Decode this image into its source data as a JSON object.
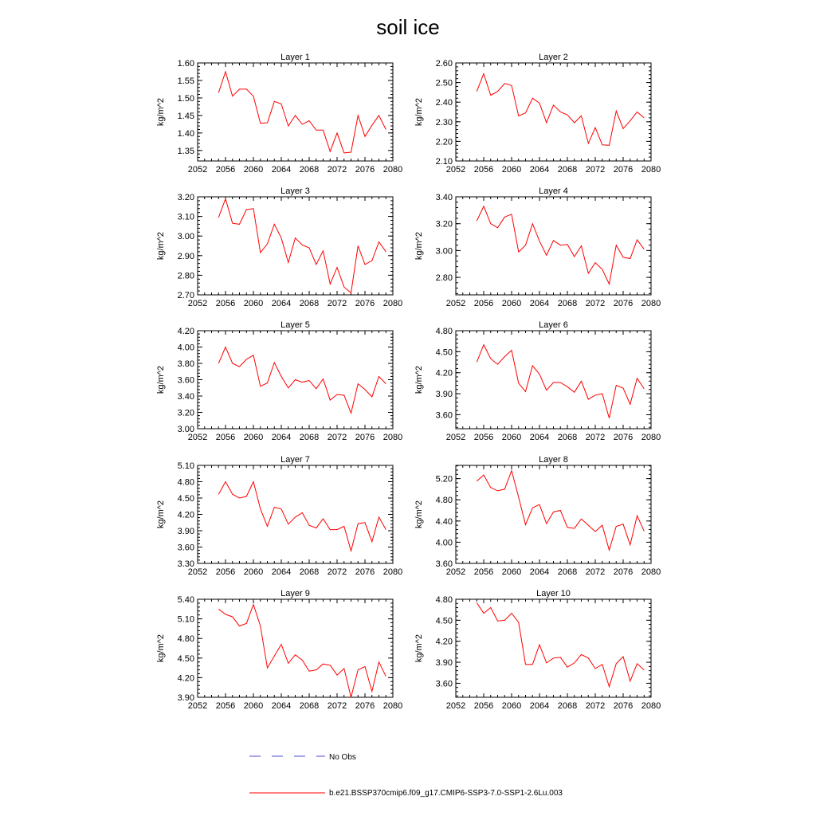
{
  "figure": {
    "title": "soil ice",
    "legend": {
      "obs_label": "No Obs",
      "obs_color": "#4a4ad0",
      "model_label": "b.e21.BSSP370cmip6.f09_g17.CMIP6-SSP3-7.0-SSP1-2.6Lu.003",
      "model_color": "#ff0000"
    }
  },
  "chart_data": [
    {
      "type": "line",
      "title": "Layer 1",
      "ylabel": "kg/m^2",
      "xlim": [
        2052,
        2080
      ],
      "xticks": [
        2052,
        2056,
        2060,
        2064,
        2068,
        2072,
        2076,
        2080
      ],
      "ylim": [
        1.32,
        1.6
      ],
      "yticks": [
        "1.35",
        "1.40",
        "1.45",
        "1.50",
        "1.55",
        "1.60"
      ],
      "x": [
        2055,
        2056,
        2057,
        2058,
        2059,
        2060,
        2061,
        2062,
        2063,
        2064,
        2065,
        2066,
        2067,
        2068,
        2069,
        2070,
        2071,
        2072,
        2073,
        2074,
        2075,
        2076,
        2077,
        2078,
        2079
      ],
      "series": [
        {
          "color": "#ff0000",
          "values": [
            1.515,
            1.575,
            1.505,
            1.525,
            1.525,
            1.505,
            1.428,
            1.429,
            1.49,
            1.483,
            1.42,
            1.45,
            1.425,
            1.435,
            1.408,
            1.408,
            1.347,
            1.4,
            1.343,
            1.345,
            1.45,
            1.39,
            1.422,
            1.45,
            1.41
          ]
        }
      ]
    },
    {
      "type": "line",
      "title": "Layer 2",
      "ylabel": "kg/m^2",
      "xlim": [
        2052,
        2080
      ],
      "xticks": [
        2052,
        2056,
        2060,
        2064,
        2068,
        2072,
        2076,
        2080
      ],
      "ylim": [
        2.1,
        2.6
      ],
      "yticks": [
        "2.10",
        "2.20",
        "2.30",
        "2.40",
        "2.50",
        "2.60"
      ],
      "x": [
        2055,
        2056,
        2057,
        2058,
        2059,
        2060,
        2061,
        2062,
        2063,
        2064,
        2065,
        2066,
        2067,
        2068,
        2069,
        2070,
        2071,
        2072,
        2073,
        2074,
        2075,
        2076,
        2077,
        2078,
        2079
      ],
      "series": [
        {
          "color": "#ff0000",
          "values": [
            2.455,
            2.545,
            2.435,
            2.455,
            2.495,
            2.485,
            2.33,
            2.345,
            2.42,
            2.395,
            2.295,
            2.385,
            2.35,
            2.335,
            2.295,
            2.33,
            2.19,
            2.27,
            2.182,
            2.18,
            2.355,
            2.265,
            2.305,
            2.35,
            2.32
          ]
        }
      ]
    },
    {
      "type": "line",
      "title": "Layer 3",
      "ylabel": "kg/m^2",
      "xlim": [
        2052,
        2080
      ],
      "xticks": [
        2052,
        2056,
        2060,
        2064,
        2068,
        2072,
        2076,
        2080
      ],
      "ylim": [
        2.7,
        3.2
      ],
      "yticks": [
        "2.70",
        "2.80",
        "2.90",
        "3.00",
        "3.10",
        "3.20"
      ],
      "x": [
        2055,
        2056,
        2057,
        2058,
        2059,
        2060,
        2061,
        2062,
        2063,
        2064,
        2065,
        2066,
        2067,
        2068,
        2069,
        2070,
        2071,
        2072,
        2073,
        2074,
        2075,
        2076,
        2077,
        2078,
        2079
      ],
      "series": [
        {
          "color": "#ff0000",
          "values": [
            3.095,
            3.19,
            3.065,
            3.06,
            3.135,
            3.14,
            2.915,
            2.96,
            3.06,
            2.99,
            2.865,
            2.99,
            2.955,
            2.94,
            2.855,
            2.925,
            2.755,
            2.84,
            2.74,
            2.71,
            2.95,
            2.855,
            2.875,
            2.97,
            2.92
          ]
        }
      ]
    },
    {
      "type": "line",
      "title": "Layer 4",
      "ylabel": "kg/m^2",
      "xlim": [
        2052,
        2080
      ],
      "xticks": [
        2052,
        2056,
        2060,
        2064,
        2068,
        2072,
        2076,
        2080
      ],
      "ylim": [
        2.67,
        3.4
      ],
      "yticks": [
        "2.80",
        "3.00",
        "3.20",
        "3.40"
      ],
      "x": [
        2055,
        2056,
        2057,
        2058,
        2059,
        2060,
        2061,
        2062,
        2063,
        2064,
        2065,
        2066,
        2067,
        2068,
        2069,
        2070,
        2071,
        2072,
        2073,
        2074,
        2075,
        2076,
        2077,
        2078,
        2079
      ],
      "series": [
        {
          "color": "#ff0000",
          "values": [
            3.22,
            3.33,
            3.2,
            3.17,
            3.25,
            3.27,
            2.99,
            3.04,
            3.2,
            3.07,
            2.965,
            3.075,
            3.04,
            3.045,
            2.955,
            3.035,
            2.83,
            2.91,
            2.86,
            2.75,
            3.04,
            2.95,
            2.94,
            3.08,
            3.01
          ]
        }
      ]
    },
    {
      "type": "line",
      "title": "Layer 5",
      "ylabel": "kg/m^2",
      "xlim": [
        2052,
        2080
      ],
      "xticks": [
        2052,
        2056,
        2060,
        2064,
        2068,
        2072,
        2076,
        2080
      ],
      "ylim": [
        3.0,
        4.2
      ],
      "yticks": [
        "3.00",
        "3.20",
        "3.40",
        "3.60",
        "3.80",
        "4.00",
        "4.20"
      ],
      "x": [
        2055,
        2056,
        2057,
        2058,
        2059,
        2060,
        2061,
        2062,
        2063,
        2064,
        2065,
        2066,
        2067,
        2068,
        2069,
        2070,
        2071,
        2072,
        2073,
        2074,
        2075,
        2076,
        2077,
        2078,
        2079
      ],
      "series": [
        {
          "color": "#ff0000",
          "values": [
            3.8,
            4.0,
            3.8,
            3.76,
            3.85,
            3.9,
            3.52,
            3.56,
            3.81,
            3.64,
            3.5,
            3.6,
            3.57,
            3.59,
            3.49,
            3.61,
            3.35,
            3.42,
            3.41,
            3.19,
            3.55,
            3.48,
            3.39,
            3.64,
            3.55
          ]
        }
      ]
    },
    {
      "type": "line",
      "title": "Layer 6",
      "ylabel": "kg/m^2",
      "xlim": [
        2052,
        2080
      ],
      "xticks": [
        2052,
        2056,
        2060,
        2064,
        2068,
        2072,
        2076,
        2080
      ],
      "ylim": [
        3.4,
        4.8
      ],
      "yticks": [
        "3.60",
        "3.90",
        "4.20",
        "4.50",
        "4.80"
      ],
      "x": [
        2055,
        2056,
        2057,
        2058,
        2059,
        2060,
        2061,
        2062,
        2063,
        2064,
        2065,
        2066,
        2067,
        2068,
        2069,
        2070,
        2071,
        2072,
        2073,
        2074,
        2075,
        2076,
        2077,
        2078,
        2079
      ],
      "series": [
        {
          "color": "#ff0000",
          "values": [
            4.35,
            4.6,
            4.4,
            4.32,
            4.43,
            4.52,
            4.05,
            3.93,
            4.3,
            4.18,
            3.95,
            4.06,
            4.06,
            4.0,
            3.92,
            4.08,
            3.82,
            3.88,
            3.9,
            3.55,
            4.02,
            3.98,
            3.75,
            4.12,
            3.97
          ]
        }
      ]
    },
    {
      "type": "line",
      "title": "Layer 7",
      "ylabel": "kg/m^2",
      "xlim": [
        2052,
        2080
      ],
      "xticks": [
        2052,
        2056,
        2060,
        2064,
        2068,
        2072,
        2076,
        2080
      ],
      "ylim": [
        3.3,
        5.1
      ],
      "yticks": [
        "3.30",
        "3.60",
        "3.90",
        "4.20",
        "4.50",
        "4.80",
        "5.10"
      ],
      "x": [
        2055,
        2056,
        2057,
        2058,
        2059,
        2060,
        2061,
        2062,
        2063,
        2064,
        2065,
        2066,
        2067,
        2068,
        2069,
        2070,
        2071,
        2072,
        2073,
        2074,
        2075,
        2076,
        2077,
        2078,
        2079
      ],
      "series": [
        {
          "color": "#ff0000",
          "values": [
            4.57,
            4.8,
            4.57,
            4.5,
            4.53,
            4.8,
            4.3,
            3.98,
            4.33,
            4.3,
            4.02,
            4.15,
            4.23,
            4.0,
            3.95,
            4.12,
            3.92,
            3.92,
            3.98,
            3.53,
            4.03,
            4.05,
            3.7,
            4.15,
            3.92
          ]
        }
      ]
    },
    {
      "type": "line",
      "title": "Layer 8",
      "ylabel": "kg/m^2",
      "xlim": [
        2052,
        2080
      ],
      "xticks": [
        2052,
        2056,
        2060,
        2064,
        2068,
        2072,
        2076,
        2080
      ],
      "ylim": [
        3.6,
        5.45
      ],
      "yticks": [
        "3.60",
        "4.00",
        "4.40",
        "4.80",
        "5.20"
      ],
      "x": [
        2055,
        2056,
        2057,
        2058,
        2059,
        2060,
        2061,
        2062,
        2063,
        2064,
        2065,
        2066,
        2067,
        2068,
        2069,
        2070,
        2071,
        2072,
        2073,
        2074,
        2075,
        2076,
        2077,
        2078,
        2079
      ],
      "series": [
        {
          "color": "#ff0000",
          "values": [
            5.15,
            5.27,
            5.03,
            4.97,
            5.0,
            5.35,
            4.85,
            4.33,
            4.65,
            4.71,
            4.35,
            4.57,
            4.6,
            4.28,
            4.26,
            4.44,
            4.32,
            4.2,
            4.32,
            3.85,
            4.3,
            4.34,
            3.95,
            4.5,
            4.21
          ]
        }
      ]
    },
    {
      "type": "line",
      "title": "Layer 9",
      "ylabel": "kg/m^2",
      "xlim": [
        2052,
        2080
      ],
      "xticks": [
        2052,
        2056,
        2060,
        2064,
        2068,
        2072,
        2076,
        2080
      ],
      "ylim": [
        3.9,
        5.4
      ],
      "yticks": [
        "3.90",
        "4.20",
        "4.50",
        "4.80",
        "5.10",
        "5.40"
      ],
      "x": [
        2055,
        2056,
        2057,
        2058,
        2059,
        2060,
        2061,
        2062,
        2063,
        2064,
        2065,
        2066,
        2067,
        2068,
        2069,
        2070,
        2071,
        2072,
        2073,
        2074,
        2075,
        2076,
        2077,
        2078,
        2079
      ],
      "series": [
        {
          "color": "#ff0000",
          "values": [
            5.25,
            5.17,
            5.13,
            4.99,
            5.03,
            5.32,
            4.99,
            4.35,
            4.53,
            4.71,
            4.42,
            4.55,
            4.47,
            4.3,
            4.32,
            4.41,
            4.39,
            4.24,
            4.34,
            3.9,
            4.32,
            4.37,
            3.99,
            4.44,
            4.22
          ]
        }
      ]
    },
    {
      "type": "line",
      "title": "Layer 10",
      "ylabel": "kg/m^2",
      "xlim": [
        2052,
        2080
      ],
      "xticks": [
        2052,
        2056,
        2060,
        2064,
        2068,
        2072,
        2076,
        2080
      ],
      "ylim": [
        3.4,
        4.8
      ],
      "yticks": [
        "3.60",
        "3.90",
        "4.20",
        "4.50",
        "4.80"
      ],
      "x": [
        2055,
        2056,
        2057,
        2058,
        2059,
        2060,
        2061,
        2062,
        2063,
        2064,
        2065,
        2066,
        2067,
        2068,
        2069,
        2070,
        2071,
        2072,
        2073,
        2074,
        2075,
        2076,
        2077,
        2078,
        2079
      ],
      "series": [
        {
          "color": "#ff0000",
          "values": [
            4.75,
            4.6,
            4.68,
            4.49,
            4.5,
            4.6,
            4.47,
            3.87,
            3.87,
            4.15,
            3.89,
            3.96,
            3.97,
            3.83,
            3.89,
            4.01,
            3.96,
            3.81,
            3.87,
            3.55,
            3.88,
            3.98,
            3.63,
            3.88,
            3.79
          ]
        }
      ]
    }
  ]
}
